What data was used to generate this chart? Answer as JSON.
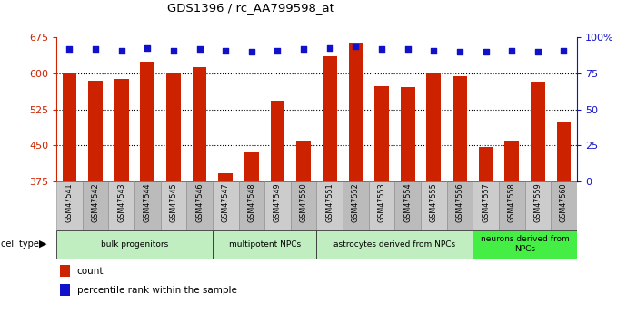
{
  "title": "GDS1396 / rc_AA799598_at",
  "samples": [
    "GSM47541",
    "GSM47542",
    "GSM47543",
    "GSM47544",
    "GSM47545",
    "GSM47546",
    "GSM47547",
    "GSM47548",
    "GSM47549",
    "GSM47550",
    "GSM47551",
    "GSM47552",
    "GSM47553",
    "GSM47554",
    "GSM47555",
    "GSM47556",
    "GSM47557",
    "GSM47558",
    "GSM47559",
    "GSM47560"
  ],
  "counts": [
    600,
    585,
    588,
    625,
    601,
    614,
    393,
    435,
    543,
    460,
    637,
    665,
    573,
    572,
    601,
    595,
    447,
    460,
    583,
    500
  ],
  "percentiles": [
    92,
    92,
    91,
    93,
    91,
    92,
    91,
    90,
    91,
    92,
    93,
    94,
    92,
    92,
    91,
    90,
    90,
    91,
    90,
    91
  ],
  "ymin": 375,
  "ymax": 675,
  "yticks_left": [
    375,
    450,
    525,
    600,
    675
  ],
  "yticks_right": [
    0,
    25,
    50,
    75,
    100
  ],
  "bar_color": "#cc2200",
  "dot_color": "#1111cc",
  "left_tick_color": "#cc2200",
  "right_tick_color": "#1111cc",
  "grid_lines": [
    450,
    525,
    600
  ],
  "groups": [
    {
      "label": "bulk progenitors",
      "start": 0,
      "end": 5,
      "color": "#c0eec0"
    },
    {
      "label": "multipotent NPCs",
      "start": 6,
      "end": 9,
      "color": "#c0eec0"
    },
    {
      "label": "astrocytes derived from NPCs",
      "start": 10,
      "end": 15,
      "color": "#c0eec0"
    },
    {
      "label": "neurons derived from\nNPCs",
      "start": 16,
      "end": 19,
      "color": "#44ee44"
    }
  ],
  "xtick_bg_even": "#cccccc",
  "xtick_bg_odd": "#bbbbbb",
  "cell_type_label": "cell type",
  "legend_count_color": "#cc2200",
  "legend_dot_color": "#1111cc",
  "legend_count_label": "count",
  "legend_dot_label": "percentile rank within the sample"
}
